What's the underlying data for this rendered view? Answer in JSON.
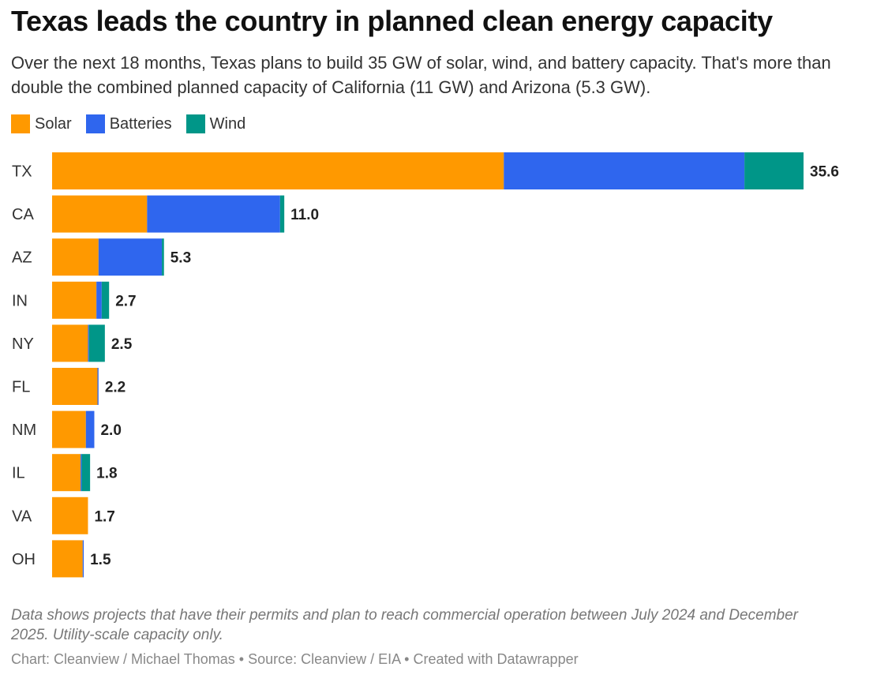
{
  "title": "Texas leads the country in planned clean energy capacity",
  "subtitle": "Over the next 18 months, Texas plans to build 35 GW of solar, wind, and battery capacity. That's more than double the combined planned capacity of California (11 GW) and Arizona (5.3 GW).",
  "legend": [
    {
      "label": "Solar",
      "color": "#ff9900"
    },
    {
      "label": "Batteries",
      "color": "#2f66ee"
    },
    {
      "label": "Wind",
      "color": "#009688"
    }
  ],
  "notes": "Data shows projects that have their permits and plan to reach commercial operation between July 2024 and December 2025. Utility-scale capacity only.",
  "credit": "Chart: Cleanview / Michael Thomas • Source: Cleanview / EIA • Created with Datawrapper",
  "chart_data": {
    "type": "bar",
    "orientation": "horizontal",
    "stacked": true,
    "categories": [
      "TX",
      "CA",
      "AZ",
      "IN",
      "NY",
      "FL",
      "NM",
      "IL",
      "VA",
      "OH"
    ],
    "series": [
      {
        "name": "Solar",
        "color": "#ff9900",
        "values": [
          21.4,
          4.5,
          2.2,
          2.1,
          1.7,
          2.15,
          1.6,
          1.35,
          1.7,
          1.45
        ]
      },
      {
        "name": "Batteries",
        "color": "#2f66ee",
        "values": [
          11.4,
          6.3,
          3.0,
          0.25,
          0.05,
          0.05,
          0.4,
          0.05,
          0.0,
          0.05
        ]
      },
      {
        "name": "Wind",
        "color": "#009688",
        "values": [
          2.8,
          0.2,
          0.1,
          0.35,
          0.75,
          0.0,
          0.0,
          0.4,
          0.0,
          0.0
        ]
      }
    ],
    "totals": [
      "35.6",
      "11.0",
      "5.3",
      "2.7",
      "2.5",
      "2.2",
      "2.0",
      "1.8",
      "1.7",
      "1.5"
    ],
    "xlim": [
      0,
      35.6
    ],
    "grid": false,
    "legend_position": "top-left"
  }
}
